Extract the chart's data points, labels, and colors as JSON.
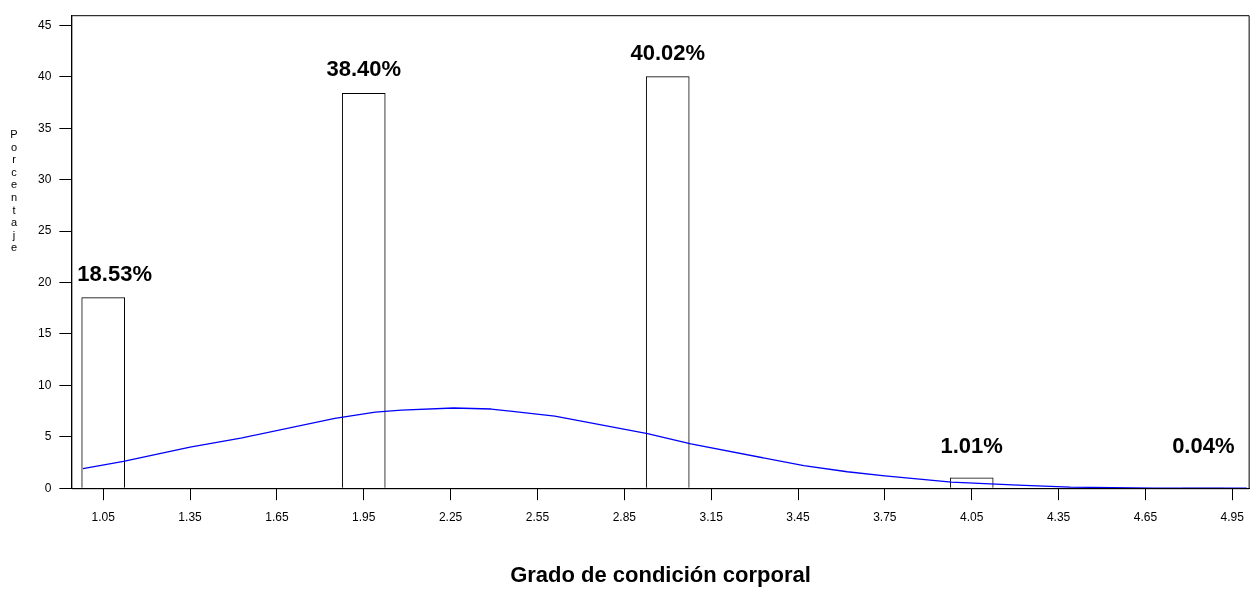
{
  "chart_data": {
    "type": "bar",
    "xlabel": "Grado de condición corporal",
    "ylabel": "Porcentaje",
    "marker": "none",
    "xlim": [
      0.94,
      5.01
    ],
    "xticks": [
      1.05,
      1.35,
      1.65,
      1.95,
      2.25,
      2.55,
      2.85,
      3.15,
      3.45,
      3.75,
      4.05,
      4.35,
      4.65,
      4.95
    ],
    "ylim": [
      0,
      46
    ],
    "yticks": [
      0,
      5,
      10,
      15,
      20,
      25,
      30,
      35,
      40,
      45
    ],
    "series": [
      {
        "color": "#ffffff",
        "x": [
          1.05,
          1.95,
          3.0,
          4.05,
          4.85
        ],
        "values": [
          18.53,
          38.4,
          40.02,
          1.01,
          0.04
        ],
        "value_labels": [
          "18.53%",
          "38.40%",
          "40.02%",
          "1.01%",
          "0.04%"
        ]
      },
      {
        "type": "line",
        "color": "#0000ff",
        "x": [
          0.98,
          1.12,
          1.35,
          1.53,
          1.85,
          1.99,
          2.08,
          2.26,
          2.39,
          2.61,
          2.93,
          3.08,
          3.47,
          3.62,
          3.75,
          3.98,
          4.21,
          4.39,
          4.68,
          5.0
        ],
        "values": [
          1.9,
          2.6,
          4.0,
          4.9,
          6.8,
          7.4,
          7.6,
          7.8,
          7.7,
          7.0,
          5.3,
          4.3,
          2.2,
          1.6,
          1.2,
          0.6,
          0.3,
          0.1,
          0.0,
          0
        ]
      }
    ]
  }
}
